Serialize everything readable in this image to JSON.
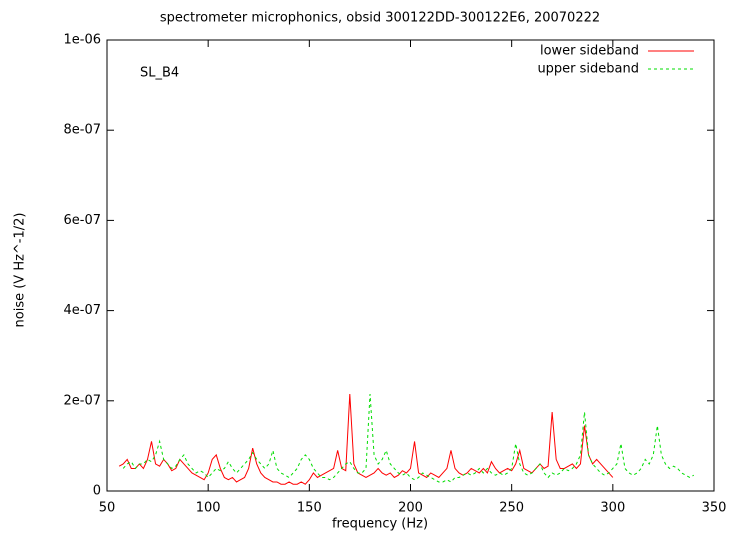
{
  "chart_data": {
    "type": "line",
    "title": "spectrometer microphonics, obsid 300122DD-300122E6, 20070222",
    "annotation": "SL_B4",
    "x_label": "frequency (Hz)",
    "y_label": "noise (V Hz^-1/2)",
    "xlim": [
      50,
      350
    ],
    "xticks": [
      50,
      100,
      150,
      200,
      250,
      300,
      350
    ],
    "ylim": [
      0,
      1e-06
    ],
    "yticks": [
      0,
      {
        "value": 2e-07,
        "label": "2e-07"
      },
      {
        "value": 4e-07,
        "label": "4e-07"
      },
      {
        "value": 6e-07,
        "label": "6e-07"
      },
      {
        "value": 8e-07,
        "label": "8e-07"
      },
      {
        "value": 1e-06,
        "label": "1e-06"
      }
    ],
    "legend": "top-right",
    "x": [
      56,
      58,
      60,
      62,
      64,
      66,
      68,
      70,
      72,
      74,
      76,
      78,
      80,
      82,
      84,
      86,
      88,
      90,
      92,
      94,
      96,
      98,
      100,
      102,
      104,
      106,
      108,
      110,
      112,
      114,
      116,
      118,
      120,
      122,
      124,
      126,
      128,
      130,
      132,
      134,
      136,
      138,
      140,
      142,
      144,
      146,
      148,
      150,
      152,
      154,
      156,
      158,
      160,
      162,
      164,
      166,
      168,
      170,
      172,
      174,
      176,
      178,
      180,
      182,
      184,
      186,
      188,
      190,
      192,
      194,
      196,
      198,
      200,
      202,
      204,
      206,
      208,
      210,
      212,
      214,
      216,
      218,
      220,
      222,
      224,
      226,
      228,
      230,
      232,
      234,
      236,
      238,
      240,
      242,
      244,
      246,
      248,
      250,
      252,
      254,
      256,
      258,
      260,
      262,
      264,
      266,
      268,
      270,
      272,
      274,
      276,
      278,
      280,
      282,
      284,
      286,
      288,
      290,
      292,
      294,
      296,
      298,
      300,
      302,
      304,
      306,
      308,
      310,
      312,
      314,
      316,
      318,
      320,
      322,
      324,
      326,
      328,
      330,
      332,
      334,
      336,
      338,
      340
    ],
    "series": [
      {
        "name": "lower sideband",
        "color": "#ff0000",
        "dash": "none",
        "values": [
          5.5e-08,
          6e-08,
          7e-08,
          5e-08,
          5e-08,
          6e-08,
          5e-08,
          7e-08,
          1.1e-07,
          6e-08,
          5.5e-08,
          7e-08,
          6e-08,
          4.5e-08,
          5e-08,
          7e-08,
          6e-08,
          5e-08,
          4e-08,
          3.5e-08,
          3e-08,
          2.5e-08,
          4e-08,
          7e-08,
          8e-08,
          5e-08,
          3e-08,
          2.5e-08,
          3e-08,
          2e-08,
          2.5e-08,
          3e-08,
          5e-08,
          9.5e-08,
          6e-08,
          4e-08,
          3e-08,
          2.5e-08,
          2e-08,
          2e-08,
          1.5e-08,
          1.5e-08,
          2e-08,
          1.5e-08,
          1.5e-08,
          2e-08,
          1.5e-08,
          2.5e-08,
          4e-08,
          3e-08,
          3.5e-08,
          4e-08,
          4.5e-08,
          5e-08,
          9e-08,
          5e-08,
          4.5e-08,
          2.15e-07,
          6e-08,
          4e-08,
          3.5e-08,
          3e-08,
          3.5e-08,
          4e-08,
          5e-08,
          4e-08,
          3.5e-08,
          4e-08,
          3e-08,
          3.5e-08,
          4.5e-08,
          4e-08,
          5e-08,
          1.1e-07,
          4e-08,
          3.5e-08,
          3e-08,
          4e-08,
          3.5e-08,
          3e-08,
          4e-08,
          5e-08,
          9e-08,
          5e-08,
          4e-08,
          3.5e-08,
          4e-08,
          5e-08,
          4.5e-08,
          4e-08,
          5e-08,
          4e-08,
          6.5e-08,
          5e-08,
          4e-08,
          4.5e-08,
          5e-08,
          4.5e-08,
          6e-08,
          9e-08,
          5e-08,
          4.5e-08,
          4e-08,
          5e-08,
          6e-08,
          5e-08,
          5.5e-08,
          1.75e-07,
          7e-08,
          5e-08,
          5e-08,
          5.5e-08,
          6e-08,
          5e-08,
          6e-08,
          1.45e-07,
          8e-08,
          6e-08,
          7e-08,
          6e-08,
          5e-08,
          4e-08,
          3e-08,
          null,
          null,
          null,
          null,
          null,
          null,
          null,
          null,
          null,
          null,
          null,
          null,
          null,
          null,
          null,
          null,
          null,
          null,
          null,
          null
        ]
      },
      {
        "name": "upper sideband",
        "color": "#00dd00",
        "dash": "3,3",
        "values": [
          null,
          5e-08,
          6e-08,
          6.5e-08,
          5e-08,
          6e-08,
          6e-08,
          7e-08,
          6.5e-08,
          8e-08,
          1.1e-07,
          7e-08,
          6e-08,
          5e-08,
          5.5e-08,
          7e-08,
          8e-08,
          6e-08,
          5e-08,
          4e-08,
          4.5e-08,
          4e-08,
          3e-08,
          4e-08,
          5e-08,
          4.5e-08,
          5e-08,
          6.5e-08,
          5e-08,
          4e-08,
          5e-08,
          6e-08,
          7e-08,
          8.5e-08,
          7e-08,
          6e-08,
          5e-08,
          6e-08,
          9e-08,
          5e-08,
          4e-08,
          3.5e-08,
          3e-08,
          4e-08,
          5e-08,
          7e-08,
          8e-08,
          7e-08,
          5e-08,
          4e-08,
          3e-08,
          3e-08,
          2.5e-08,
          3e-08,
          4e-08,
          5e-08,
          6e-08,
          6.5e-08,
          5e-08,
          4e-08,
          4e-08,
          5e-08,
          2.15e-07,
          8e-08,
          6e-08,
          7e-08,
          9e-08,
          6e-08,
          5e-08,
          4e-08,
          3.5e-08,
          4e-08,
          3e-08,
          2.5e-08,
          3e-08,
          4e-08,
          3.5e-08,
          3e-08,
          2.5e-08,
          2e-08,
          2e-08,
          2.5e-08,
          2e-08,
          3e-08,
          3e-08,
          3.5e-08,
          4e-08,
          3.5e-08,
          4e-08,
          5e-08,
          4e-08,
          5e-08,
          4e-08,
          3.5e-08,
          4e-08,
          3.5e-08,
          4e-08,
          5e-08,
          1.05e-07,
          6e-08,
          4e-08,
          3.5e-08,
          4e-08,
          5e-08,
          6e-08,
          4e-08,
          3e-08,
          4e-08,
          3.5e-08,
          4e-08,
          5e-08,
          4.5e-08,
          5e-08,
          6e-08,
          8e-08,
          1.75e-07,
          8e-08,
          6e-08,
          5e-08,
          4e-08,
          3.5e-08,
          4e-08,
          5e-08,
          6e-08,
          1.05e-07,
          5e-08,
          4e-08,
          3.5e-08,
          4e-08,
          5e-08,
          7e-08,
          6e-08,
          8e-08,
          1.45e-07,
          8e-08,
          6e-08,
          5e-08,
          5.5e-08,
          5e-08,
          4e-08,
          3.5e-08,
          3e-08,
          3.5e-08
        ]
      }
    ]
  }
}
